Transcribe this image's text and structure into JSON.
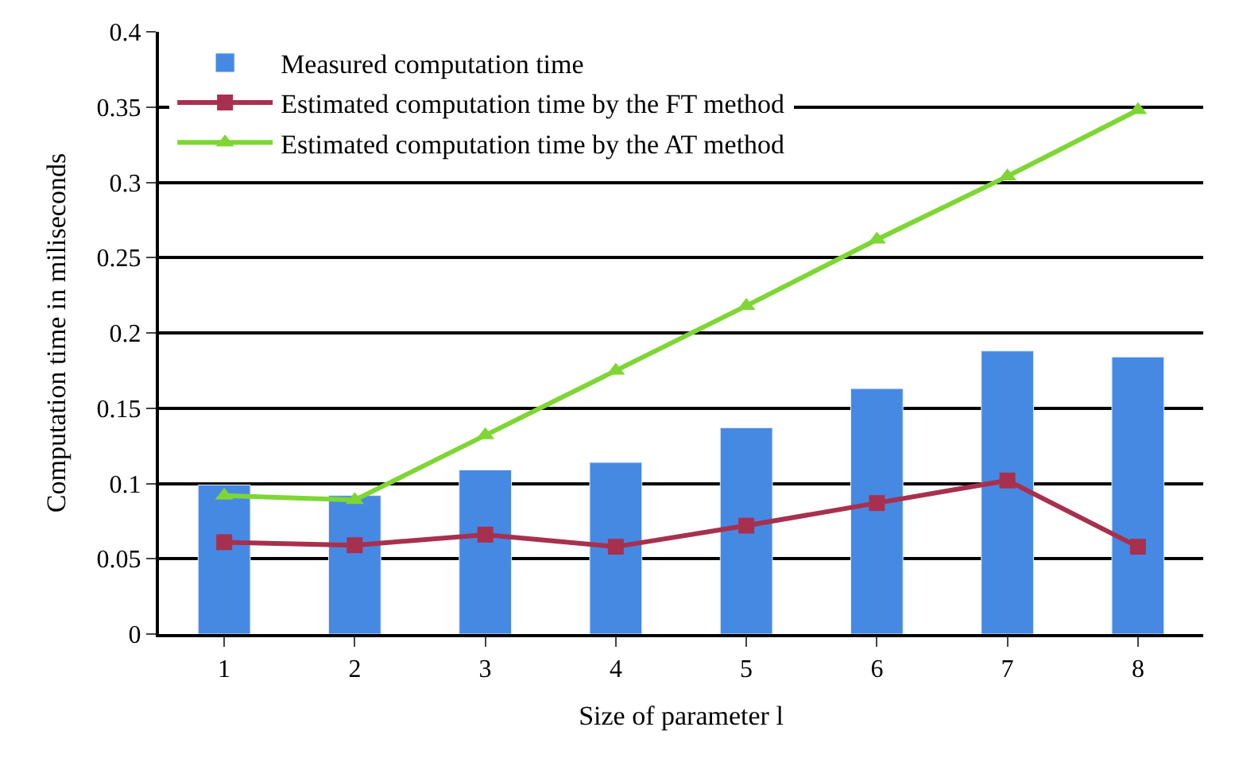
{
  "chart_data": {
    "type": "bar",
    "xlabel": "Size of parameter l",
    "ylabel": "Computation time in miliseconds",
    "categories": [
      "1",
      "2",
      "3",
      "4",
      "5",
      "6",
      "7",
      "8"
    ],
    "series": [
      {
        "name": "Measured computation time",
        "color": "#4689e3",
        "values": [
          0.099,
          0.092,
          0.109,
          0.114,
          0.137,
          0.163,
          0.188,
          0.184
        ]
      },
      {
        "name": "Estimated computation time by the FT method",
        "type": "line",
        "color": "#a8304f",
        "marker": "square",
        "values": [
          0.061,
          0.059,
          0.066,
          0.058,
          0.072,
          0.087,
          0.102,
          0.058
        ]
      },
      {
        "name": "Estimated computation time by the AT method",
        "type": "line",
        "color": "#7ed634",
        "marker": "triangle",
        "values": [
          0.092,
          0.089,
          0.132,
          0.175,
          0.218,
          0.262,
          0.304,
          0.348
        ]
      }
    ],
    "ylim": [
      0,
      0.4
    ],
    "yticks": [
      0,
      0.05,
      0.1,
      0.15,
      0.2,
      0.25,
      0.3,
      0.35,
      0.4
    ],
    "grid": "y",
    "legend": "top left"
  }
}
